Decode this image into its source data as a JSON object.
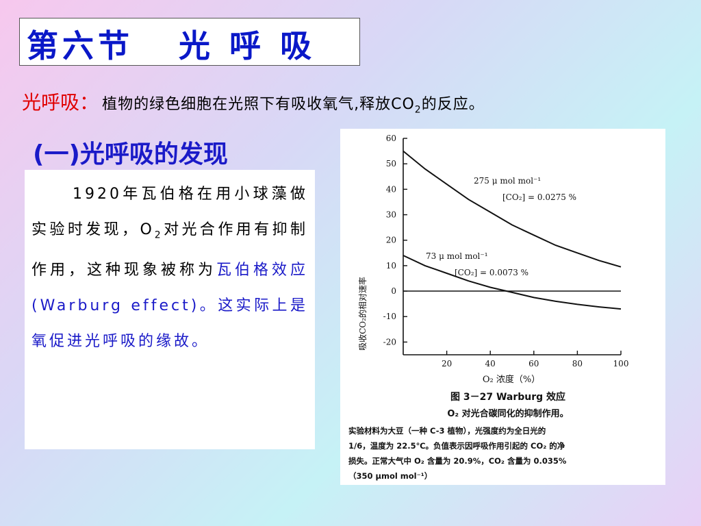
{
  "title": "第六节   光 呼 吸",
  "definition": {
    "label": "光呼吸：",
    "text_before": "植物的绿色细胞在光照下有吸收氧气,释放CO",
    "subscript": "2",
    "text_after": "的反应。"
  },
  "section_heading": "(一)光呼吸的发现",
  "body": {
    "part1": "1920年瓦伯格在用小球藻做实验时发现，O",
    "part1_sub": "2",
    "part2": "对光合作用有抑制作用，这种现象被称为",
    "highlight": "瓦伯格效应(Warburg effect)。这实际上是氧促进光呼吸的缘故。"
  },
  "figure": {
    "y_axis_label": "吸收CO₂的相对速率",
    "x_axis_label": "O₂ 浓度（%）",
    "caption_title": "图 3－27   Warburg 效应",
    "caption_subtitle": "O₂ 对光合碳同化的抑制作用。",
    "caption_note": [
      "实验材料为大豆（一种 C-3 植物），光强度约为全日光的",
      "1/6，温度为 22.5℃。负值表示因呼吸作用引起的 CO₂ 的净",
      "损失。正常大气中 O₂ 含量为 20.9%，CO₂ 含量为 0.035%",
      "（350 μmol mol⁻¹）"
    ]
  },
  "chart_data": {
    "type": "line",
    "xlabel": "O₂ 浓度（%）",
    "ylabel": "吸收CO₂的相对速率",
    "xlim": [
      0,
      100
    ],
    "ylim": [
      -25,
      60
    ],
    "x_ticks": [
      20,
      40,
      60,
      80,
      100
    ],
    "y_ticks": [
      60,
      50,
      40,
      30,
      20,
      10,
      0,
      -10,
      -20
    ],
    "series": [
      {
        "label_line1": "275 μ mol mol⁻¹",
        "label_line2": "[CO₂] = 0.0275 %",
        "x": [
          0,
          10,
          20,
          30,
          40,
          50,
          60,
          70,
          80,
          90,
          100
        ],
        "y": [
          55,
          48,
          42,
          36,
          31,
          26,
          22,
          18,
          15,
          12,
          9.5
        ]
      },
      {
        "label_line1": "73  μ mol mol⁻¹",
        "label_line2": "[CO₂] = 0.0073 %",
        "x": [
          0,
          10,
          20,
          30,
          40,
          50,
          60,
          70,
          80,
          90,
          100
        ],
        "y": [
          14,
          10,
          7,
          4,
          1.5,
          -0.5,
          -2.5,
          -4,
          -5.2,
          -6.2,
          -7
        ]
      }
    ],
    "reference_line_y": 0
  }
}
